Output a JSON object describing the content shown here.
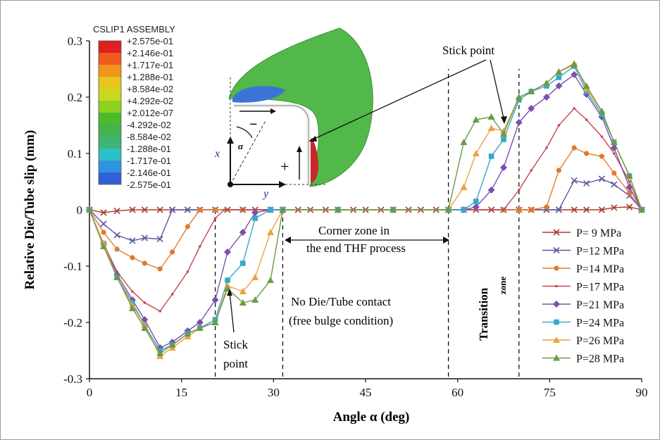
{
  "chart_data": {
    "type": "line",
    "xlabel": "Angle α (deg)",
    "ylabel": "Relative Die/Tube slip (mm)",
    "xlim": [
      0,
      90
    ],
    "ylim": [
      -0.3,
      0.3
    ],
    "x_ticks": [
      "0",
      "15",
      "30",
      "45",
      "60",
      "75",
      "90"
    ],
    "y_ticks": [
      "0.3",
      "0.2",
      "0.1",
      "0",
      "-0.1",
      "-0.2",
      "-0.3"
    ],
    "legend_position": "right",
    "series": [
      {
        "name": "P= 9 MPa",
        "color": "#a83a2a",
        "marker": "x",
        "points": [
          [
            0,
            0
          ],
          [
            2.3,
            -0.005
          ],
          [
            4.5,
            -0.002
          ],
          [
            7,
            0
          ],
          [
            9,
            0
          ],
          [
            11.5,
            0
          ],
          [
            13.5,
            0
          ],
          [
            16,
            0
          ],
          [
            18,
            0
          ],
          [
            20.5,
            0
          ],
          [
            22.5,
            0
          ],
          [
            25,
            0
          ],
          [
            27,
            0
          ],
          [
            29.5,
            0
          ],
          [
            31.5,
            0
          ],
          [
            34,
            0
          ],
          [
            36,
            0
          ],
          [
            38.5,
            0
          ],
          [
            40.5,
            0
          ],
          [
            43,
            0
          ],
          [
            45,
            0
          ],
          [
            47.5,
            0
          ],
          [
            49.5,
            0
          ],
          [
            52,
            0
          ],
          [
            54,
            0
          ],
          [
            56.5,
            0
          ],
          [
            58.5,
            0
          ],
          [
            61,
            0
          ],
          [
            63,
            0
          ],
          [
            65.5,
            0
          ],
          [
            67.5,
            0
          ],
          [
            70,
            0
          ],
          [
            72,
            0
          ],
          [
            74.5,
            0
          ],
          [
            76.5,
            0
          ],
          [
            79,
            0
          ],
          [
            81,
            0
          ],
          [
            83.5,
            0
          ],
          [
            85.5,
            0.004
          ],
          [
            88,
            0.005
          ],
          [
            90,
            0
          ]
        ]
      },
      {
        "name": "P=12 MPa",
        "color": "#5a5aa0",
        "marker": "x",
        "points": [
          [
            0,
            0
          ],
          [
            2.3,
            -0.025
          ],
          [
            4.5,
            -0.045
          ],
          [
            7,
            -0.055
          ],
          [
            9,
            -0.05
          ],
          [
            11.5,
            -0.052
          ],
          [
            13.5,
            0
          ],
          [
            16,
            0
          ],
          [
            20.5,
            0
          ],
          [
            25,
            0
          ],
          [
            31.5,
            0
          ],
          [
            40.5,
            0
          ],
          [
            49.5,
            0
          ],
          [
            58.5,
            0
          ],
          [
            67.5,
            0
          ],
          [
            74.5,
            0
          ],
          [
            76.5,
            0
          ],
          [
            79,
            0.052
          ],
          [
            81,
            0.047
          ],
          [
            83.5,
            0.055
          ],
          [
            85.5,
            0.045
          ],
          [
            88,
            0.025
          ],
          [
            90,
            0
          ]
        ]
      },
      {
        "name": "P=14 MPa",
        "color": "#e07a2a",
        "marker": "circle",
        "points": [
          [
            0,
            0
          ],
          [
            2.3,
            -0.04
          ],
          [
            4.5,
            -0.07
          ],
          [
            7,
            -0.085
          ],
          [
            9,
            -0.095
          ],
          [
            11.5,
            -0.105
          ],
          [
            13.5,
            -0.075
          ],
          [
            16,
            -0.03
          ],
          [
            18,
            0
          ],
          [
            20.5,
            0
          ],
          [
            25,
            0
          ],
          [
            31.5,
            0
          ],
          [
            40.5,
            0
          ],
          [
            49.5,
            0
          ],
          [
            58.5,
            0
          ],
          [
            67.5,
            0
          ],
          [
            70,
            0
          ],
          [
            72,
            0
          ],
          [
            74.5,
            0.005
          ],
          [
            76.5,
            0.07
          ],
          [
            79,
            0.11
          ],
          [
            81,
            0.1
          ],
          [
            83.5,
            0.095
          ],
          [
            85.5,
            0.065
          ],
          [
            88,
            0.03
          ],
          [
            90,
            0
          ]
        ]
      },
      {
        "name": "P=17 MPa",
        "color": "#c8464a",
        "marker": "dot",
        "points": [
          [
            0,
            0
          ],
          [
            2.3,
            -0.06
          ],
          [
            4.5,
            -0.11
          ],
          [
            7,
            -0.145
          ],
          [
            9,
            -0.165
          ],
          [
            11.5,
            -0.18
          ],
          [
            13.5,
            -0.15
          ],
          [
            16,
            -0.11
          ],
          [
            18,
            -0.065
          ],
          [
            20.5,
            -0.015
          ],
          [
            22,
            0
          ],
          [
            25,
            0
          ],
          [
            31.5,
            0
          ],
          [
            40.5,
            0
          ],
          [
            49.5,
            0
          ],
          [
            58.5,
            0
          ],
          [
            65.5,
            0
          ],
          [
            67.5,
            0
          ],
          [
            70,
            0.035
          ],
          [
            72,
            0.07
          ],
          [
            74.5,
            0.11
          ],
          [
            76.5,
            0.15
          ],
          [
            79,
            0.18
          ],
          [
            81,
            0.16
          ],
          [
            83.5,
            0.13
          ],
          [
            85.5,
            0.1
          ],
          [
            88,
            0.05
          ],
          [
            90,
            0
          ]
        ]
      },
      {
        "name": "P=21 MPa",
        "color": "#7a50b0",
        "marker": "diamond",
        "points": [
          [
            0,
            0
          ],
          [
            2.3,
            -0.06
          ],
          [
            4.5,
            -0.115
          ],
          [
            7,
            -0.16
          ],
          [
            9,
            -0.195
          ],
          [
            11.5,
            -0.245
          ],
          [
            13.5,
            -0.235
          ],
          [
            16,
            -0.215
          ],
          [
            18,
            -0.2
          ],
          [
            20.5,
            -0.16
          ],
          [
            22.5,
            -0.075
          ],
          [
            25,
            -0.04
          ],
          [
            27,
            -0.005
          ],
          [
            29.5,
            0
          ],
          [
            31.5,
            0
          ],
          [
            40.5,
            0
          ],
          [
            49.5,
            0
          ],
          [
            58.5,
            0
          ],
          [
            61,
            0
          ],
          [
            63,
            0.005
          ],
          [
            65.5,
            0.035
          ],
          [
            67.5,
            0.075
          ],
          [
            70,
            0.155
          ],
          [
            72,
            0.18
          ],
          [
            74.5,
            0.2
          ],
          [
            76.5,
            0.22
          ],
          [
            79,
            0.24
          ],
          [
            81,
            0.205
          ],
          [
            83.5,
            0.165
          ],
          [
            85.5,
            0.11
          ],
          [
            88,
            0.04
          ],
          [
            90,
            0
          ]
        ]
      },
      {
        "name": "P=24 MPa",
        "color": "#38a8c8",
        "marker": "square",
        "points": [
          [
            0,
            0
          ],
          [
            2.3,
            -0.06
          ],
          [
            4.5,
            -0.12
          ],
          [
            7,
            -0.165
          ],
          [
            9,
            -0.205
          ],
          [
            11.5,
            -0.25
          ],
          [
            13.5,
            -0.24
          ],
          [
            16,
            -0.22
          ],
          [
            18,
            -0.21
          ],
          [
            20.5,
            -0.195
          ],
          [
            22.5,
            -0.125
          ],
          [
            25,
            -0.095
          ],
          [
            27,
            -0.015
          ],
          [
            29.5,
            0
          ],
          [
            31.5,
            0
          ],
          [
            40.5,
            0
          ],
          [
            49.5,
            0
          ],
          [
            58.5,
            0
          ],
          [
            61,
            0
          ],
          [
            63,
            0.015
          ],
          [
            65.5,
            0.095
          ],
          [
            67.5,
            0.125
          ],
          [
            70,
            0.195
          ],
          [
            72,
            0.21
          ],
          [
            74.5,
            0.22
          ],
          [
            76.5,
            0.235
          ],
          [
            79,
            0.255
          ],
          [
            81,
            0.21
          ],
          [
            83.5,
            0.17
          ],
          [
            85.5,
            0.12
          ],
          [
            88,
            0.06
          ],
          [
            90,
            0
          ]
        ]
      },
      {
        "name": "P=26 MPa",
        "color": "#f0a040",
        "marker": "triangle",
        "points": [
          [
            0,
            0
          ],
          [
            2.3,
            -0.06
          ],
          [
            4.5,
            -0.12
          ],
          [
            7,
            -0.17
          ],
          [
            9,
            -0.205
          ],
          [
            11.5,
            -0.26
          ],
          [
            13.5,
            -0.245
          ],
          [
            16,
            -0.225
          ],
          [
            18,
            -0.21
          ],
          [
            20.5,
            -0.2
          ],
          [
            22.5,
            -0.135
          ],
          [
            25,
            -0.145
          ],
          [
            27,
            -0.12
          ],
          [
            29.5,
            -0.04
          ],
          [
            31.5,
            0
          ],
          [
            40.5,
            0
          ],
          [
            49.5,
            0
          ],
          [
            58.5,
            0
          ],
          [
            61,
            0.04
          ],
          [
            63,
            0.1
          ],
          [
            65.5,
            0.145
          ],
          [
            67.5,
            0.14
          ],
          [
            70,
            0.2
          ],
          [
            72,
            0.21
          ],
          [
            74.5,
            0.225
          ],
          [
            76.5,
            0.245
          ],
          [
            79,
            0.26
          ],
          [
            81,
            0.215
          ],
          [
            83.5,
            0.175
          ],
          [
            85.5,
            0.12
          ],
          [
            88,
            0.06
          ],
          [
            90,
            0
          ]
        ]
      },
      {
        "name": "P=28 MPa",
        "color": "#6a9a4a",
        "marker": "triangle",
        "points": [
          [
            0,
            0
          ],
          [
            2.3,
            -0.065
          ],
          [
            4.5,
            -0.12
          ],
          [
            7,
            -0.175
          ],
          [
            9,
            -0.21
          ],
          [
            11.5,
            -0.255
          ],
          [
            13.5,
            -0.24
          ],
          [
            16,
            -0.22
          ],
          [
            18,
            -0.21
          ],
          [
            20.5,
            -0.2
          ],
          [
            22.5,
            -0.14
          ],
          [
            25,
            -0.165
          ],
          [
            27,
            -0.16
          ],
          [
            29.5,
            -0.125
          ],
          [
            31.5,
            0
          ],
          [
            40.5,
            0
          ],
          [
            49.5,
            0
          ],
          [
            58.5,
            0
          ],
          [
            61,
            0.12
          ],
          [
            63,
            0.16
          ],
          [
            65.5,
            0.165
          ],
          [
            67.5,
            0.135
          ],
          [
            70,
            0.2
          ],
          [
            72,
            0.21
          ],
          [
            74.5,
            0.225
          ],
          [
            76.5,
            0.245
          ],
          [
            79,
            0.258
          ],
          [
            81,
            0.22
          ],
          [
            83.5,
            0.175
          ],
          [
            85.5,
            0.12
          ],
          [
            88,
            0.06
          ],
          [
            90,
            0
          ]
        ]
      }
    ],
    "dashed_lines_x": [
      20.5,
      31.5,
      58.5,
      70
    ],
    "annotations": {
      "stick_point_top": "Stick point",
      "stick_point_bottom_1": "Stick",
      "stick_point_bottom_2": "point",
      "corner_zone_1": "Corner zone in",
      "corner_zone_2": "the end THF process",
      "no_contact_1": "No Die/Tube contact",
      "no_contact_2": "(free bulge condition)",
      "transition_1": "Transition",
      "transition_2": "zone"
    },
    "inset": {
      "title": "CSLIP1  ASSEMBLY",
      "colorbar_labels": [
        "+2.575e-01",
        "+2.146e-01",
        "+1.717e-01",
        "+1.288e-01",
        "+8.584e-02",
        "+4.292e-02",
        "+2.012e-07",
        "-4.292e-02",
        "-8.584e-02",
        "-1.288e-01",
        "-1.717e-01",
        "-2.146e-01",
        "-2.575e-01"
      ],
      "colorbar_colors": [
        "#e02020",
        "#f05a1e",
        "#f0961e",
        "#e8c61e",
        "#c8d81e",
        "#8cd21e",
        "#4cba2c",
        "#44b24e",
        "#40b474",
        "#2ec0c8",
        "#2e94e0",
        "#3060d8",
        "#2a3cc8"
      ],
      "sign_minus": "−",
      "sign_plus": "+",
      "axis_x": "x",
      "axis_y": "y",
      "alpha": "α"
    }
  }
}
